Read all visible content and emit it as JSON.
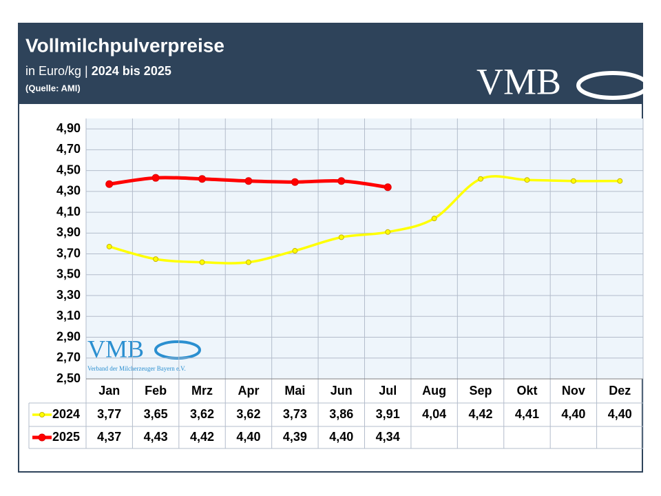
{
  "chart_data": {
    "type": "line",
    "title": "Vollmilchpulverpreise",
    "subtitle": [
      "in Euro/kg |",
      "2024 bis 2025"
    ],
    "source": "(Quelle: AMI)",
    "logo": "VMB",
    "watermark": {
      "logo": "VMB",
      "caption": "Verband der Milcherzeuger Bayern e.V."
    },
    "categories": [
      "Jan",
      "Feb",
      "Mrz",
      "Apr",
      "Mai",
      "Jun",
      "Jul",
      "Aug",
      "Sep",
      "Okt",
      "Nov",
      "Dez"
    ],
    "series": [
      {
        "name": "2024",
        "color": "#ffff00",
        "marker_edge": "#c8b400",
        "values": [
          3.77,
          3.65,
          3.62,
          3.62,
          3.73,
          3.86,
          3.91,
          4.04,
          4.42,
          4.41,
          4.4,
          4.4
        ],
        "value_labels": [
          "3,77",
          "3,65",
          "3,62",
          "3,62",
          "3,73",
          "3,86",
          "3,91",
          "4,04",
          "4,42",
          "4,41",
          "4,40",
          "4,40"
        ]
      },
      {
        "name": "2025",
        "color": "#ff0000",
        "marker_edge": "#e00000",
        "values": [
          4.37,
          4.43,
          4.42,
          4.4,
          4.39,
          4.4,
          4.34,
          null,
          null,
          null,
          null,
          null
        ],
        "value_labels": [
          "4,37",
          "4,43",
          "4,42",
          "4,40",
          "4,39",
          "4,40",
          "4,34",
          null,
          null,
          null,
          null,
          null
        ]
      }
    ],
    "ylim": [
      2.5,
      5.0
    ],
    "yticks": [
      {
        "value": 2.5,
        "label": "2,50"
      },
      {
        "value": 2.7,
        "label": "2,70"
      },
      {
        "value": 2.9,
        "label": "2,90"
      },
      {
        "value": 3.1,
        "label": "3,10"
      },
      {
        "value": 3.3,
        "label": "3,30"
      },
      {
        "value": 3.5,
        "label": "3,50"
      },
      {
        "value": 3.7,
        "label": "3,70"
      },
      {
        "value": 3.9,
        "label": "3,90"
      },
      {
        "value": 4.1,
        "label": "4,10"
      },
      {
        "value": 4.3,
        "label": "4,30"
      },
      {
        "value": 4.5,
        "label": "4,50"
      },
      {
        "value": 4.7,
        "label": "4,70"
      },
      {
        "value": 4.9,
        "label": "4,90"
      }
    ],
    "grid": true
  }
}
